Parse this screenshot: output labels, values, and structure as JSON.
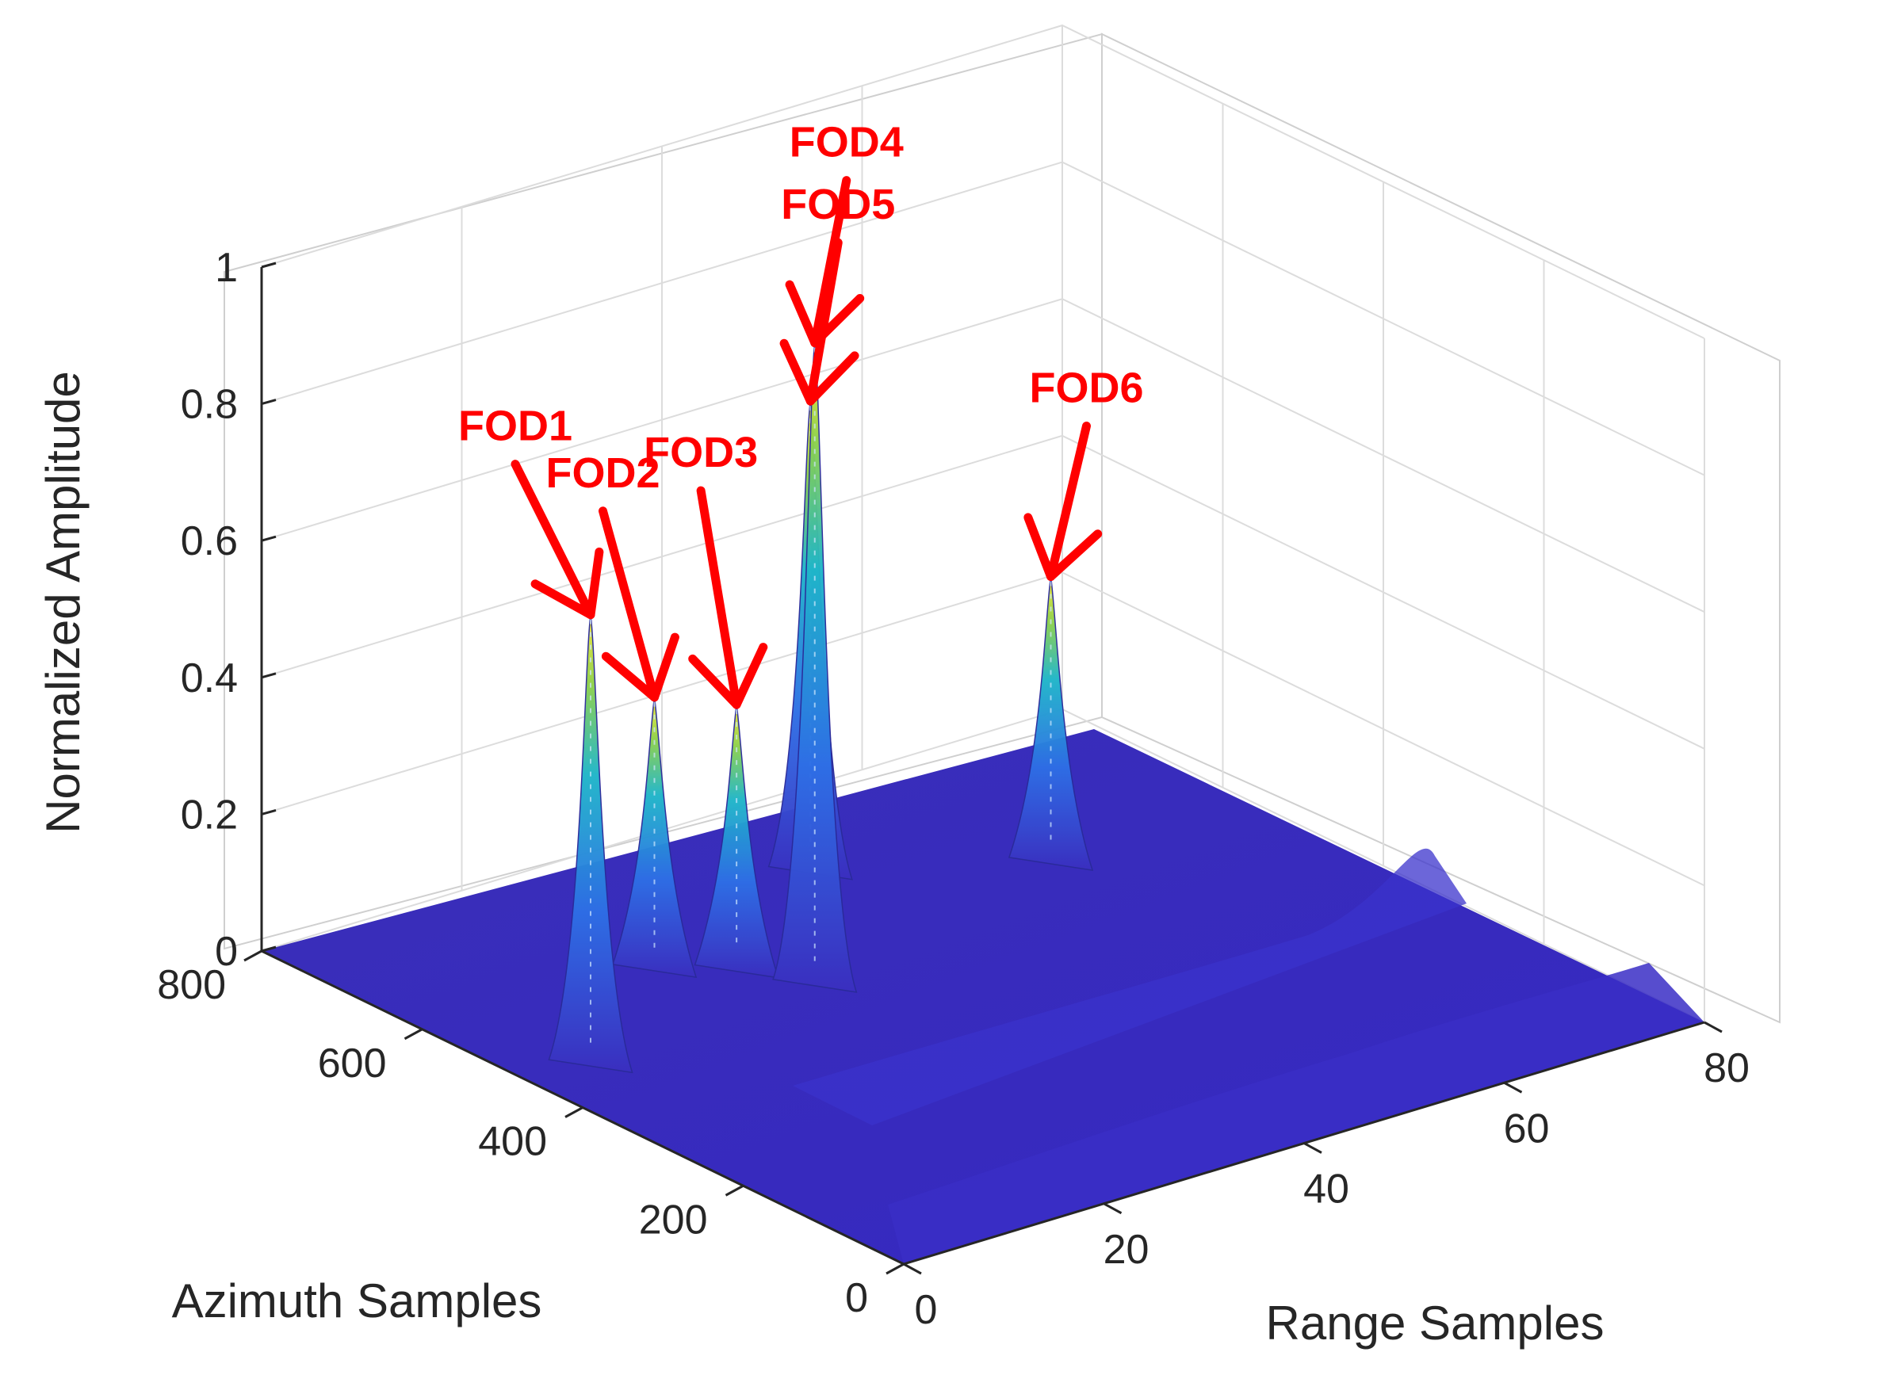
{
  "chart_data": {
    "type": "surface",
    "title": "",
    "xlabel": "Range Samples",
    "ylabel": "Azimuth Samples",
    "zlabel": "Normalized Amplitude",
    "xlim": [
      0,
      80
    ],
    "ylim": [
      0,
      800
    ],
    "zlim": [
      0,
      1
    ],
    "x_ticks": [
      "0",
      "20",
      "40",
      "60",
      "80"
    ],
    "y_ticks": [
      "0",
      "200",
      "400",
      "600",
      "800"
    ],
    "z_ticks": [
      "0",
      "0.2",
      "0.4",
      "0.6",
      "0.8",
      "1"
    ],
    "grid": true,
    "colormap": "parula",
    "colors": {
      "surface_low": "#3b2fc0",
      "surface_mid": "#1fa6d8",
      "surface_high": "#f5e83b",
      "annotation": "#ff0000"
    },
    "annotations": [
      {
        "label": "FOD1",
        "range": 4,
        "azimuth": 440,
        "amplitude": 0.68
      },
      {
        "label": "FOD2",
        "range": 20,
        "azimuth": 560,
        "amplitude": 0.42
      },
      {
        "label": "FOD3",
        "range": 25,
        "azimuth": 520,
        "amplitude": 0.41
      },
      {
        "label": "FOD4",
        "range": 28,
        "azimuth": 460,
        "amplitude": 0.96
      },
      {
        "label": "FOD5",
        "range": 42,
        "azimuth": 640,
        "amplitude": 0.71
      },
      {
        "label": "FOD6",
        "range": 58,
        "azimuth": 540,
        "amplitude": 0.44
      }
    ]
  }
}
